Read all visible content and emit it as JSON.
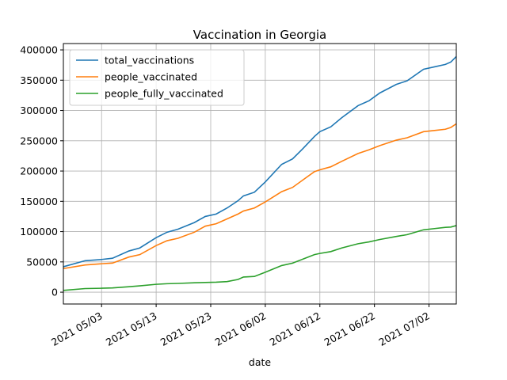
{
  "chart_data": {
    "type": "line",
    "title": "Vaccination in Georgia",
    "xlabel": "date",
    "x": [
      "2021-04-26",
      "2021-04-30",
      "2021-05-03",
      "2021-05-05",
      "2021-05-08",
      "2021-05-10",
      "2021-05-13",
      "2021-05-15",
      "2021-05-17",
      "2021-05-20",
      "2021-05-22",
      "2021-05-24",
      "2021-05-26",
      "2021-05-28",
      "2021-05-29",
      "2021-05-31",
      "2021-06-02",
      "2021-06-05",
      "2021-06-07",
      "2021-06-09",
      "2021-06-11",
      "2021-06-12",
      "2021-06-14",
      "2021-06-16",
      "2021-06-19",
      "2021-06-21",
      "2021-06-23",
      "2021-06-26",
      "2021-06-28",
      "2021-07-01",
      "2021-07-03",
      "2021-07-05",
      "2021-07-06",
      "2021-07-07"
    ],
    "series": [
      {
        "name": "total_vaccinations",
        "color": "#1f77b4",
        "values": [
          42000,
          52000,
          54000,
          56000,
          68000,
          73000,
          90000,
          99000,
          104000,
          115000,
          125000,
          129000,
          139000,
          151000,
          159000,
          165000,
          182000,
          211000,
          220000,
          238000,
          257000,
          265000,
          273000,
          288000,
          308000,
          316000,
          329000,
          343000,
          349000,
          368000,
          372000,
          376000,
          380000,
          389000
        ]
      },
      {
        "name": "people_vaccinated",
        "color": "#ff7f0e",
        "values": [
          39000,
          45000,
          47000,
          48000,
          58000,
          62000,
          77000,
          85000,
          89000,
          99000,
          109000,
          113000,
          121000,
          129000,
          134000,
          139000,
          149000,
          166000,
          173000,
          186000,
          199000,
          202000,
          207000,
          216000,
          229000,
          235000,
          242000,
          251000,
          255000,
          265000,
          267000,
          269000,
          272000,
          278000
        ]
      },
      {
        "name": "people_fully_vaccinated",
        "color": "#2ca02c",
        "values": [
          3000,
          6000,
          6500,
          7000,
          9000,
          10500,
          13000,
          14000,
          14500,
          15500,
          16000,
          16500,
          17500,
          21000,
          25000,
          26000,
          33000,
          44000,
          48000,
          55000,
          62000,
          64000,
          67000,
          73000,
          80000,
          83000,
          87000,
          92000,
          95000,
          103000,
          105000,
          107000,
          107500,
          110000
        ]
      }
    ],
    "xlim": [
      "2021-04-26",
      "2021-07-07"
    ],
    "xticks": [
      {
        "value": "2021-05-03",
        "label": "2021 05/03"
      },
      {
        "value": "2021-05-13",
        "label": "2021 05/13"
      },
      {
        "value": "2021-05-23",
        "label": "2021 05/23"
      },
      {
        "value": "2021-06-02",
        "label": "2021 06/02"
      },
      {
        "value": "2021-06-12",
        "label": "2021 06/12"
      },
      {
        "value": "2021-06-22",
        "label": "2021 06/22"
      },
      {
        "value": "2021-07-02",
        "label": "2021 07/02"
      }
    ],
    "ylim": [
      -19500,
      410500
    ],
    "yticks": [
      0,
      50000,
      100000,
      150000,
      200000,
      250000,
      300000,
      350000,
      400000
    ],
    "grid": true,
    "legend": "upper left"
  }
}
